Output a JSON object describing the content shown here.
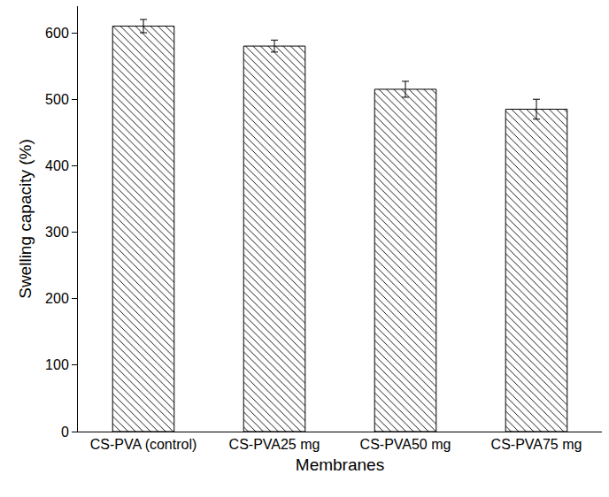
{
  "chart_data": {
    "type": "bar",
    "x_label": "Membranes",
    "y_label": "Swelling capacity (%)",
    "categories": [
      "CS-PVA (control)",
      "CS-PVA25 mg",
      "CS-PVA50 mg",
      "CS-PVA75 mg"
    ],
    "values": [
      610,
      580,
      515,
      485
    ],
    "errors": [
      10,
      9,
      12,
      15
    ],
    "color": "#000000",
    "ylim": [
      0,
      640
    ],
    "yticks": [
      0,
      100,
      200,
      300,
      400,
      500,
      600
    ],
    "grid": false
  }
}
